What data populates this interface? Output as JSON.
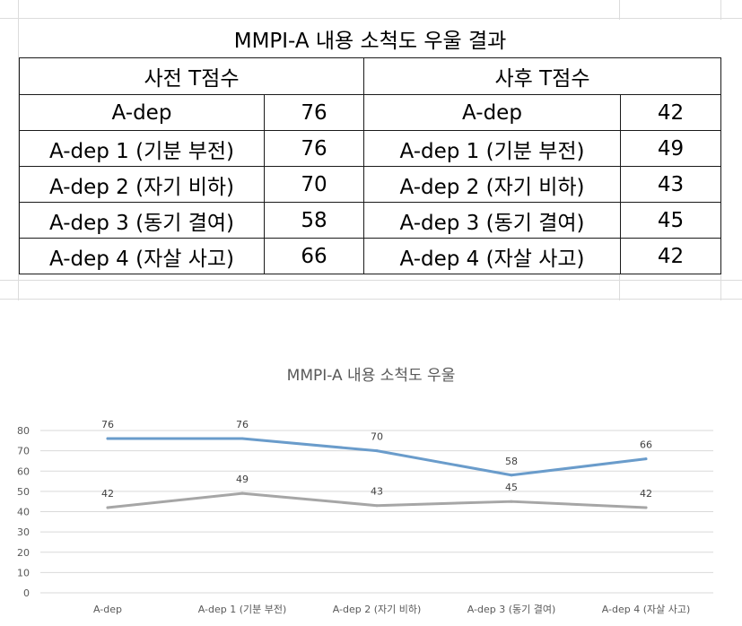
{
  "table": {
    "title": "MMPI-A 내용 소척도 우울 결과",
    "before_header": "사전 T점수",
    "after_header": "사후 T점수",
    "rows": [
      {
        "label_before": "A-dep",
        "before": "76",
        "label_after": "A-dep",
        "after": "42"
      },
      {
        "label_before": "A-dep 1 (기분 부전)",
        "before": "76",
        "label_after": "A-dep 1 (기분 부전)",
        "after": "49"
      },
      {
        "label_before": "A-dep 2 (자기 비하)",
        "before": "70",
        "label_after": "A-dep 2 (자기 비하)",
        "after": "43"
      },
      {
        "label_before": "A-dep 3 (동기 결여)",
        "before": "58",
        "label_after": "A-dep 3 (동기 결여)",
        "after": "45"
      },
      {
        "label_before": "A-dep 4 (자살 사고)",
        "before": "66",
        "label_after": "A-dep 4 (자살 사고)",
        "after": "42"
      }
    ]
  },
  "chart_data": {
    "type": "line",
    "title": "MMPI-A 내용 소척도 우울",
    "categories": [
      "A-dep",
      "A-dep 1 (기분 부전)",
      "A-dep 2 (자기 비하)",
      "A-dep 3 (동기 결여)",
      "A-dep 4 (자살 사고)"
    ],
    "series": [
      {
        "values": [
          76,
          76,
          70,
          58,
          66
        ],
        "color": "#6a9ccb"
      },
      {
        "values": [
          42,
          49,
          43,
          45,
          42
        ],
        "color": "#a6a6a6"
      }
    ],
    "ylim": [
      0,
      80
    ],
    "yticks": [
      0,
      10,
      20,
      30,
      40,
      50,
      60,
      70,
      80
    ],
    "grid": true,
    "data_labels": true,
    "legend": "none"
  }
}
